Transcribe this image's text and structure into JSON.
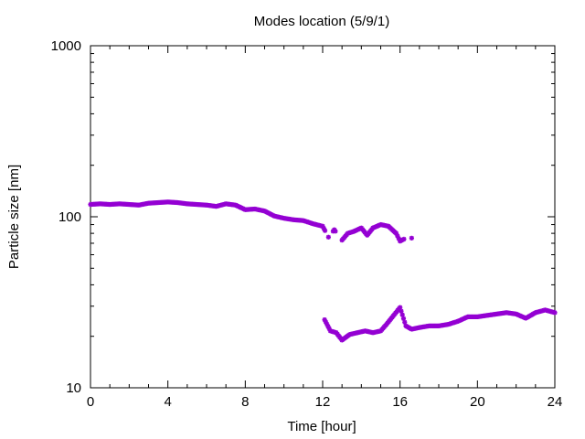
{
  "chart_data": {
    "type": "scatter",
    "title": "Modes location (5/9/1)",
    "xlabel": "Time [hour]",
    "ylabel": "Particle size [nm]",
    "xlim": [
      0,
      24
    ],
    "ylim": [
      10,
      1000
    ],
    "yscale": "log",
    "x_ticks": [
      "0",
      "4",
      "8",
      "12",
      "16",
      "20",
      "24"
    ],
    "y_ticks": [
      "10",
      "100",
      "1000"
    ],
    "grid": false,
    "legend": "none",
    "marker_color": "#9400d3",
    "series": [
      {
        "values": [
          [
            0.0,
            118
          ],
          [
            0.5,
            119
          ],
          [
            1.0,
            118
          ],
          [
            1.5,
            119
          ],
          [
            2.0,
            118
          ],
          [
            2.5,
            117
          ],
          [
            3.0,
            120
          ],
          [
            3.5,
            121
          ],
          [
            4.0,
            122
          ],
          [
            4.5,
            121
          ],
          [
            5.0,
            119
          ],
          [
            5.5,
            118
          ],
          [
            6.0,
            117
          ],
          [
            6.5,
            115
          ],
          [
            7.0,
            119
          ],
          [
            7.5,
            117
          ],
          [
            8.0,
            110
          ],
          [
            8.5,
            111
          ],
          [
            9.0,
            108
          ],
          [
            9.5,
            101
          ],
          [
            10.0,
            98
          ],
          [
            10.5,
            96
          ],
          [
            11.0,
            95
          ],
          [
            11.5,
            91
          ],
          [
            12.0,
            88
          ],
          [
            12.3,
            76
          ],
          [
            12.6,
            84
          ],
          [
            13.0,
            73
          ],
          [
            13.3,
            80
          ],
          [
            13.6,
            82
          ],
          [
            14.0,
            86
          ],
          [
            14.3,
            78
          ],
          [
            14.6,
            86
          ],
          [
            15.0,
            90
          ],
          [
            15.4,
            88
          ],
          [
            15.8,
            80
          ],
          [
            16.0,
            72
          ],
          [
            16.2,
            74
          ],
          [
            16.6,
            75
          ]
        ]
      },
      {
        "values": [
          [
            12.1,
            25
          ],
          [
            12.4,
            21.5
          ],
          [
            12.7,
            21
          ],
          [
            13.0,
            19
          ],
          [
            13.4,
            20.5
          ],
          [
            13.8,
            21
          ],
          [
            14.2,
            21.5
          ],
          [
            14.6,
            21
          ],
          [
            15.0,
            21.5
          ],
          [
            15.3,
            23.5
          ],
          [
            16.0,
            29.5
          ],
          [
            16.3,
            23
          ],
          [
            16.6,
            22
          ],
          [
            17.0,
            22.5
          ],
          [
            17.5,
            23
          ],
          [
            18.0,
            23
          ],
          [
            18.5,
            23.5
          ],
          [
            19.0,
            24.5
          ],
          [
            19.5,
            26
          ],
          [
            20.0,
            26
          ],
          [
            20.5,
            26.5
          ],
          [
            21.0,
            27
          ],
          [
            21.5,
            27.5
          ],
          [
            22.0,
            27
          ],
          [
            22.5,
            25.5
          ],
          [
            23.0,
            27.5
          ],
          [
            23.5,
            28.5
          ],
          [
            24.0,
            27.5
          ]
        ]
      }
    ]
  }
}
